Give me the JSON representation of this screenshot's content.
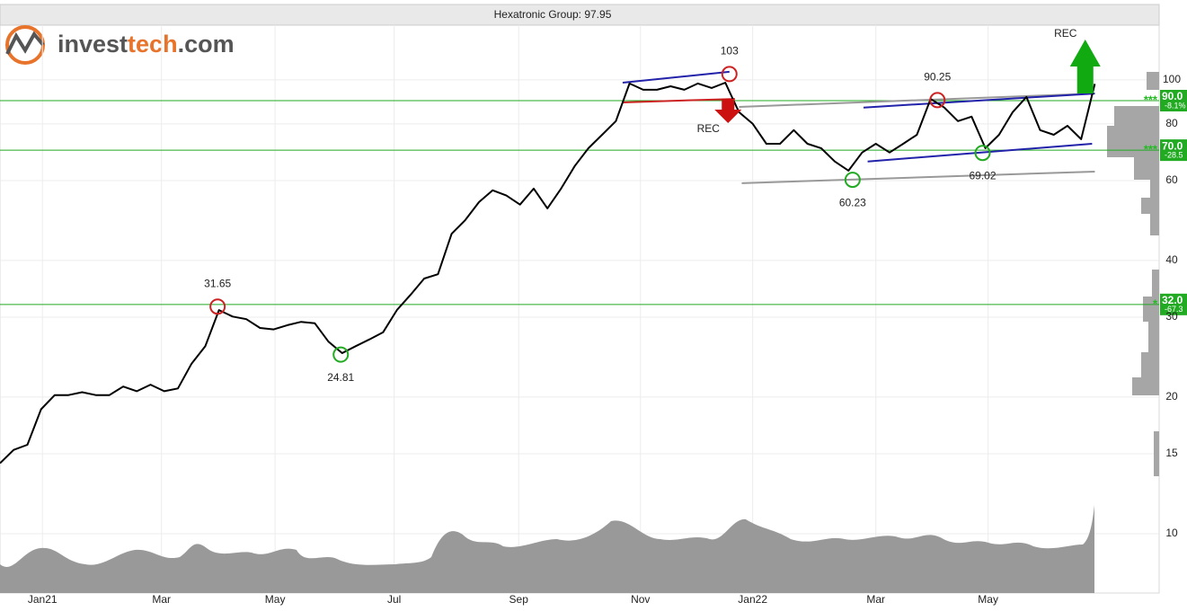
{
  "chart_data": {
    "type": "line",
    "title": "Hexatronic Group: 97.95",
    "brand": [
      "invest",
      "tech",
      ".com"
    ],
    "log_scale": true,
    "grid": true,
    "ylim": [
      7.4,
      132
    ],
    "yticks": [
      10,
      15,
      20,
      30,
      40,
      60,
      80,
      100
    ],
    "xlim": [
      0,
      84.7
    ],
    "xticks": [
      {
        "value": 3.1,
        "label": "Jan21"
      },
      {
        "value": 11.8,
        "label": "Mar"
      },
      {
        "value": 20.1,
        "label": "May"
      },
      {
        "value": 28.8,
        "label": "Jul"
      },
      {
        "value": 37.9,
        "label": "Sep"
      },
      {
        "value": 46.8,
        "label": "Nov"
      },
      {
        "value": 55.0,
        "label": "Jan22"
      },
      {
        "value": 64.0,
        "label": "Mar"
      },
      {
        "value": 72.2,
        "label": "May"
      }
    ],
    "series": [
      {
        "name": "Hexatronic Group",
        "color": "#000000",
        "values": [
          14.3,
          15.3,
          15.7,
          18.8,
          20.2,
          20.2,
          20.5,
          20.2,
          20.2,
          21.1,
          20.6,
          21.3,
          20.6,
          20.9,
          23.7,
          25.9,
          31.1,
          30.1,
          29.7,
          28.4,
          28.2,
          28.8,
          29.3,
          29.1,
          26.5,
          25.0,
          25.9,
          26.8,
          27.8,
          31.1,
          33.6,
          36.5,
          37.3,
          45.8,
          49.1,
          53.8,
          57.1,
          55.6,
          53.1,
          57.6,
          52.1,
          57.6,
          64.6,
          70.7,
          75.7,
          81.1,
          98.2,
          95.1,
          95.1,
          96.8,
          95.1,
          98.2,
          96.0,
          98.6,
          84.9,
          80.0,
          72.3,
          72.3,
          77.5,
          72.3,
          70.7,
          66.1,
          63.1,
          69.2,
          72.3,
          69.2,
          72.3,
          75.7,
          90.8,
          86.9,
          81.1,
          83.0,
          70.7,
          75.7,
          84.9,
          91.7,
          77.5,
          75.7,
          79.2,
          74.0,
          97.95
        ]
      }
    ],
    "extremes": [
      {
        "label": "31.65",
        "index": 15.9,
        "value": 31.65,
        "color": "#cc2222",
        "label_pos": "above"
      },
      {
        "label": "24.81",
        "index": 24.9,
        "value": 24.81,
        "color": "#22aa22",
        "label_pos": "below"
      },
      {
        "label": "103",
        "index": 53.3,
        "value": 103,
        "color": "#cc2222",
        "label_pos": "above"
      },
      {
        "label": "60.23",
        "index": 62.3,
        "value": 60.23,
        "color": "#22aa22",
        "label_pos": "below"
      },
      {
        "label": "90.25",
        "index": 68.5,
        "value": 90.25,
        "color": "#cc2222",
        "label_pos": "above"
      },
      {
        "label": "69.02",
        "index": 71.8,
        "value": 69.02,
        "color": "#22aa22",
        "label_pos": "below"
      }
    ],
    "trendlines": [
      {
        "x": [
          45.5,
          53.3
        ],
        "y": [
          98.6,
          104.2
        ],
        "color": "#2222aa"
      },
      {
        "x": [
          45.5,
          53.7
        ],
        "y": [
          89.2,
          90.8
        ],
        "color": "#cc2222"
      },
      {
        "x": [
          54.0,
          80.0
        ],
        "y": [
          87.2,
          93.3
        ],
        "color": "#999999"
      },
      {
        "x": [
          54.2,
          80.0
        ],
        "y": [
          59.2,
          62.8
        ],
        "color": "#999999"
      },
      {
        "x": [
          63.1,
          80.0
        ],
        "y": [
          86.9,
          93.3
        ],
        "color": "#2222aa"
      },
      {
        "x": [
          63.4,
          79.8
        ],
        "y": [
          66.1,
          72.3
        ],
        "color": "#2222aa"
      }
    ],
    "levels": [
      {
        "value": 90,
        "label": "90.0",
        "change": "-8.1%",
        "stars": "***"
      },
      {
        "value": 70,
        "label": "70.0",
        "change": "-28.5",
        "stars": "***"
      },
      {
        "value": 32,
        "label": "32.0",
        "change": "-67.3",
        "stars": "*"
      }
    ],
    "signals": [
      {
        "text": "REC",
        "index": 53.2,
        "direction": "down",
        "color": "#cc1111"
      },
      {
        "text": "REC",
        "index": 79.3,
        "direction": "up",
        "color": "#11aa11"
      }
    ]
  }
}
